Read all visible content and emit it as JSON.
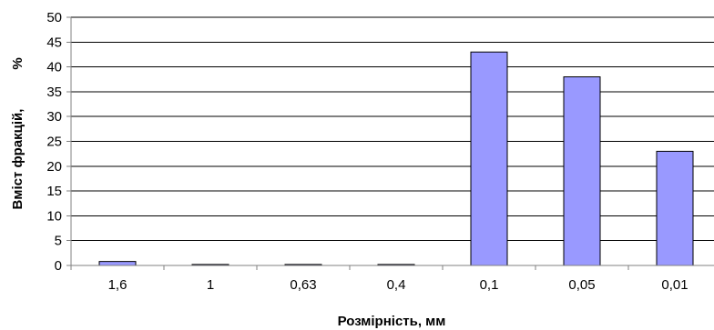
{
  "chart_data": {
    "type": "bar",
    "title": "",
    "xlabel": "Розмірність, мм",
    "ylabel": "Вміст фракцій,",
    "ylabel_unit": "%",
    "categories": [
      "1,6",
      "1",
      "0,63",
      "0,4",
      "0,1",
      "0,05",
      "0,01"
    ],
    "values": [
      0.8,
      0.2,
      0.2,
      0.2,
      43,
      38,
      23
    ],
    "ylim": [
      0,
      50
    ],
    "yticks": [
      0,
      5,
      10,
      15,
      20,
      25,
      30,
      35,
      40,
      45,
      50
    ],
    "grid": true,
    "legend": "none",
    "colors": {
      "bar_fill": "#9999ff",
      "bar_stroke": "#000000",
      "grid": "#000000",
      "axis": "#808080"
    }
  }
}
